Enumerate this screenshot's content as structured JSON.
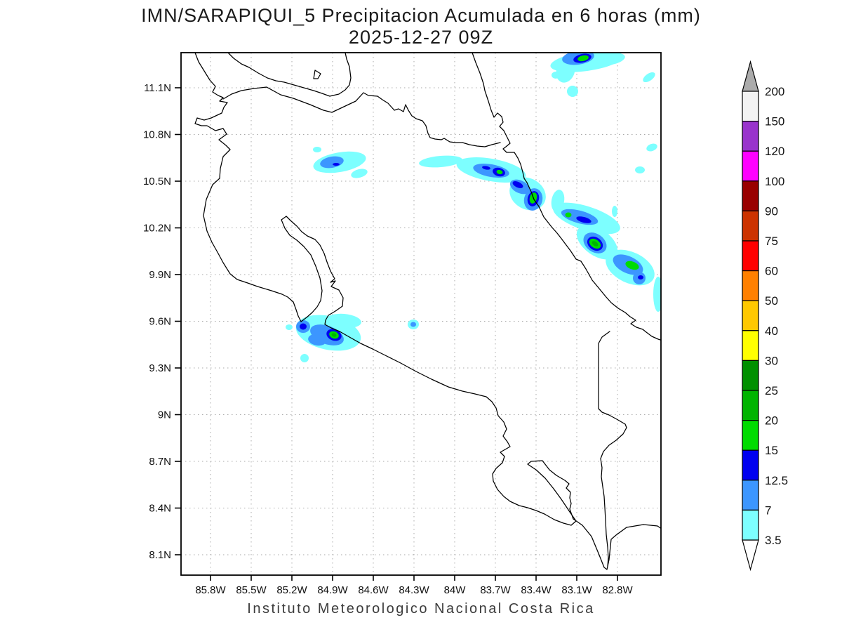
{
  "title": {
    "line1": "IMN/SARAPIQUI_5 Precipitacion Acumulada en 6 horas (mm)",
    "line2": "2025-12-27 09Z"
  },
  "caption": "Instituto Meteorologico Nacional Costa Rica",
  "axes": {
    "x_labels": [
      "85.8W",
      "85.5W",
      "85.2W",
      "84.9W",
      "84.6W",
      "84.3W",
      "84W",
      "83.7W",
      "83.4W",
      "83.1W",
      "82.8W"
    ],
    "y_labels": [
      "11.1N",
      "10.8N",
      "10.5N",
      "10.2N",
      "9.9N",
      "9.6N",
      "9.3N",
      "9N",
      "8.7N",
      "8.4N",
      "8.1N"
    ]
  },
  "colorbar": {
    "levels": [
      "200",
      "150",
      "120",
      "100",
      "90",
      "75",
      "60",
      "50",
      "40",
      "30",
      "25",
      "20",
      "15",
      "12.5",
      "7",
      "3.5"
    ],
    "cell_colors": [
      "#F2F2F2",
      "#9933CC",
      "#FF00FF",
      "#990000",
      "#CC3300",
      "#FF0000",
      "#FF8000",
      "#FFC800",
      "#FFFF00",
      "#009000",
      "#00B400",
      "#00DC00",
      "#0000F0",
      "#3C96FF",
      "#7DFFFF"
    ],
    "arrow_top_color": "#ABABAB",
    "arrow_bottom_color": "#FFFFFF",
    "outline_color": "#000000"
  },
  "chart_data": {
    "type": "map-contour",
    "region": "Costa Rica",
    "model": "IMN/SARAPIQUI_5",
    "variable": "Precipitacion Acumulada en 6 horas (mm)",
    "valid_time": "2025-12-27 09Z",
    "lon_ticks": [
      "85.8W",
      "85.5W",
      "85.2W",
      "84.9W",
      "84.6W",
      "84.3W",
      "84W",
      "83.7W",
      "83.4W",
      "83.1W",
      "82.8W"
    ],
    "lat_ticks": [
      "11.1N",
      "10.8N",
      "10.5N",
      "10.2N",
      "9.9N",
      "9.6N",
      "9.3N",
      "9N",
      "8.7N",
      "8.4N",
      "8.1N"
    ],
    "scale_levels_mm": [
      3.5,
      7,
      12.5,
      15,
      20,
      25,
      30,
      40,
      50,
      60,
      75,
      90,
      100,
      120,
      150,
      200
    ],
    "level_colors": {
      "3.5": "#7DFFFF",
      "7": "#3C96FF",
      "12.5": "#0000F0",
      "15": "#00DC00",
      "20": "#00B400"
    },
    "grid_on": true,
    "legend_position": "right",
    "patches": [
      [
        "3.5",
        836,
        87,
        52,
        14,
        -8
      ],
      [
        "3.5",
        806,
        101,
        13,
        17,
        20
      ],
      [
        "3.5",
        871,
        84,
        20,
        8,
        -10
      ],
      [
        "3.5",
        792,
        107,
        6,
        5,
        0
      ],
      [
        "3.5",
        816,
        130,
        8,
        8,
        0
      ],
      [
        "3.5",
        925,
        110,
        10,
        5,
        -35
      ],
      [
        "3.5",
        484,
        231,
        38,
        14,
        -10
      ],
      [
        "3.5",
        512,
        247,
        12,
        6,
        -15
      ],
      [
        "3.5",
        452,
        213,
        6,
        4,
        0
      ],
      [
        "3.5",
        628,
        230,
        31,
        8,
        -5
      ],
      [
        "3.5",
        700,
        242,
        50,
        16,
        10
      ],
      [
        "3.5",
        752,
        276,
        27,
        22,
        30
      ],
      [
        "3.5",
        795,
        286,
        9,
        16,
        10
      ],
      [
        "3.5",
        836,
        311,
        50,
        17,
        18
      ],
      [
        "3.5",
        851,
        345,
        33,
        19,
        35
      ],
      [
        "3.5",
        898,
        381,
        37,
        22,
        25
      ],
      [
        "3.5",
        938,
        419,
        7,
        25,
        0
      ],
      [
        "3.5",
        929,
        210,
        8,
        5,
        -20
      ],
      [
        "3.5",
        912,
        242,
        7,
        5,
        0
      ],
      [
        "3.5",
        876,
        301,
        4,
        8,
        0
      ],
      [
        "3.5",
        468,
        474,
        47,
        24,
        12
      ],
      [
        "3.5",
        490,
        457,
        25,
        10,
        5
      ],
      [
        "3.5",
        434,
        510,
        6,
        6,
        0
      ],
      [
        "3.5",
        412,
        466,
        5,
        4,
        0
      ],
      [
        "3.5",
        589,
        462,
        8,
        7,
        0
      ],
      [
        "7",
        824,
        82,
        23,
        10,
        -8
      ],
      [
        "7",
        473,
        231,
        17,
        8,
        -10
      ],
      [
        "7",
        700,
        243,
        26,
        9,
        10
      ],
      [
        "7",
        741,
        266,
        15,
        9,
        25
      ],
      [
        "7",
        760,
        284,
        13,
        16,
        15
      ],
      [
        "7",
        826,
        309,
        27,
        9,
        15
      ],
      [
        "7",
        848,
        346,
        18,
        13,
        35
      ],
      [
        "7",
        895,
        377,
        23,
        12,
        25
      ],
      [
        "7",
        911,
        396,
        9,
        9,
        0
      ],
      [
        "7",
        432,
        465,
        10,
        9,
        0
      ],
      [
        "7",
        466,
        477,
        25,
        13,
        20
      ],
      [
        "7",
        452,
        484,
        13,
        8,
        10
      ],
      [
        "7",
        589,
        462,
        4,
        3.5,
        0
      ],
      [
        "12.5",
        830,
        83,
        13,
        6,
        -12
      ],
      [
        "12.5",
        479,
        234,
        5,
        2,
        0
      ],
      [
        "12.5",
        693,
        239,
        6,
        2.5,
        10
      ],
      [
        "12.5",
        711,
        245,
        9,
        6,
        15
      ],
      [
        "12.5",
        738,
        263,
        8,
        4,
        25
      ],
      [
        "12.5",
        760,
        283,
        8,
        11,
        15
      ],
      [
        "12.5",
        832,
        313,
        11,
        4,
        15
      ],
      [
        "12.5",
        848,
        347,
        12,
        9,
        35
      ],
      [
        "12.5",
        913,
        395,
        4,
        3,
        0
      ],
      [
        "12.5",
        432,
        465,
        5,
        4.5,
        0
      ],
      [
        "12.5",
        476,
        477,
        11,
        8,
        20
      ],
      [
        "15",
        831,
        83,
        8,
        4,
        -12
      ],
      [
        "15",
        712,
        245,
        4.5,
        3,
        15
      ],
      [
        "15",
        760,
        282,
        5,
        8,
        15
      ],
      [
        "15",
        810,
        306,
        4.5,
        3.5,
        0
      ],
      [
        "15",
        848,
        347,
        9,
        6,
        35
      ],
      [
        "15",
        901,
        378,
        10,
        5.5,
        20
      ],
      [
        "15",
        476,
        477,
        7,
        5,
        20
      ],
      [
        "20",
        848,
        347,
        5,
        3,
        35
      ],
      [
        "20",
        476,
        477,
        3.5,
        2.5,
        20
      ]
    ]
  }
}
